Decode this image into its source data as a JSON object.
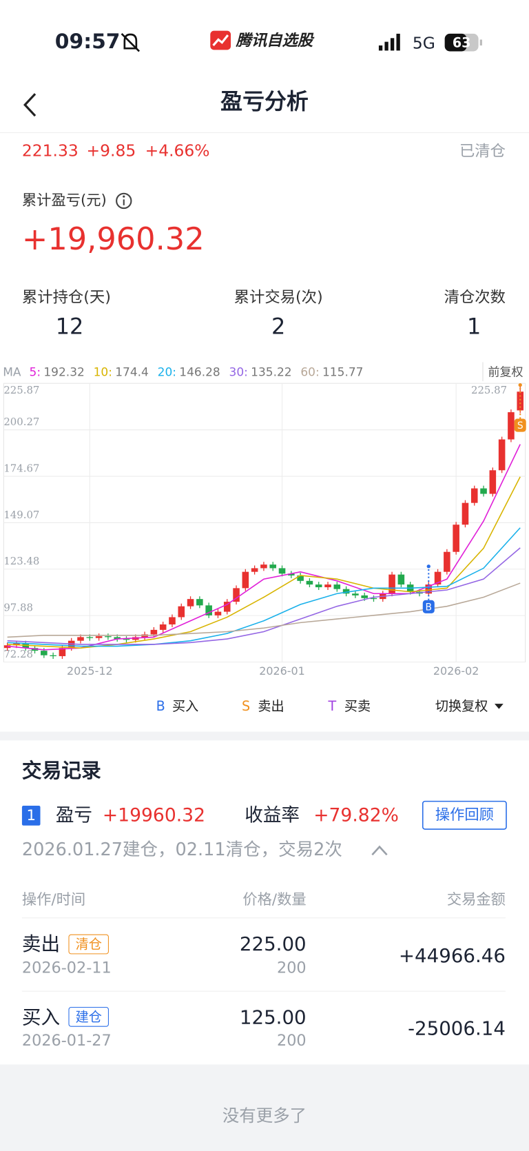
{
  "status_bar": {
    "time": "09:57",
    "app_name": "腾讯自选股",
    "network": "5G",
    "battery": "63"
  },
  "nav": {
    "title": "盈亏分析"
  },
  "quote": {
    "price": "221.33",
    "change": "+9.85",
    "change_pct": "+4.66%",
    "status": "已清仓"
  },
  "summary": {
    "label": "累计盈亏(元)",
    "value": "+19,960.32"
  },
  "stats": [
    {
      "label": "累计持仓(天)",
      "value": "12"
    },
    {
      "label": "累计交易(次)",
      "value": "2"
    },
    {
      "label": "清仓次数",
      "value": "1"
    }
  ],
  "chart_data": {
    "type": "candlestick",
    "indicator": "MA",
    "adjust_label": "前复权",
    "switch_label": "切换复权",
    "categories": [
      null,
      null,
      null,
      null,
      null,
      null,
      null,
      null,
      null,
      "2025-12",
      null,
      null,
      null,
      null,
      null,
      null,
      null,
      null,
      null,
      null,
      null,
      null,
      null,
      null,
      null,
      null,
      null,
      null,
      null,
      null,
      "2026-01",
      null,
      null,
      null,
      null,
      null,
      null,
      null,
      null,
      null,
      null,
      null,
      null,
      null,
      null,
      null,
      null,
      null,
      null,
      "2026-02",
      null,
      null,
      null,
      null,
      null,
      null,
      null
    ],
    "open": [
      80.0,
      81.5,
      82.5,
      80.0,
      78.5,
      76.0,
      75.5,
      80.0,
      84.0,
      86.0,
      85.5,
      86.5,
      86.0,
      85.0,
      84.5,
      86.0,
      87.5,
      90.0,
      93.0,
      97.0,
      103.0,
      107.0,
      103.5,
      98.0,
      100.0,
      105.5,
      113.0,
      122.0,
      124.0,
      126.0,
      124.0,
      121.0,
      120.0,
      117.0,
      115.0,
      113.5,
      115.0,
      112.5,
      110.0,
      109.0,
      107.5,
      107.0,
      110.0,
      120.5,
      115.0,
      111.0,
      110.0,
      115.0,
      122.0,
      133.0,
      148.0,
      160.0,
      168.0,
      165.0,
      178.0,
      195.0,
      211.0
    ],
    "high": [
      83.0,
      84.0,
      84.0,
      81.5,
      80.0,
      77.5,
      81.5,
      85.5,
      87.5,
      87.5,
      88.0,
      88.0,
      87.5,
      86.5,
      87.5,
      89.0,
      91.5,
      94.5,
      98.5,
      104.5,
      108.5,
      108.5,
      105.0,
      101.5,
      107.0,
      114.5,
      123.5,
      125.5,
      127.5,
      127.5,
      125.5,
      122.5,
      121.5,
      118.5,
      116.5,
      116.5,
      116.5,
      114.0,
      111.5,
      110.5,
      109.0,
      111.5,
      122.0,
      122.0,
      116.5,
      112.5,
      116.5,
      123.5,
      134.5,
      149.5,
      161.5,
      169.5,
      169.5,
      179.5,
      196.5,
      211.5,
      225.87
    ],
    "low": [
      78.5,
      80.0,
      78.5,
      77.0,
      74.5,
      74.0,
      74.0,
      78.5,
      82.5,
      84.0,
      84.0,
      84.5,
      83.5,
      83.0,
      83.0,
      84.5,
      86.0,
      88.5,
      91.5,
      95.5,
      101.5,
      102.0,
      96.5,
      96.5,
      98.5,
      104.0,
      111.5,
      120.5,
      122.5,
      122.5,
      119.5,
      118.5,
      115.5,
      113.5,
      112.0,
      112.0,
      111.0,
      108.5,
      107.5,
      106.0,
      105.5,
      105.5,
      108.5,
      113.5,
      109.5,
      108.5,
      108.5,
      113.5,
      120.5,
      131.5,
      146.5,
      158.5,
      163.5,
      163.5,
      176.5,
      193.5,
      209.5
    ],
    "close": [
      81.5,
      82.5,
      80.0,
      78.5,
      76.0,
      75.5,
      80.0,
      84.0,
      86.0,
      85.5,
      86.5,
      86.0,
      85.0,
      84.5,
      86.0,
      87.5,
      90.0,
      93.0,
      97.0,
      103.0,
      107.0,
      103.5,
      98.0,
      100.0,
      105.5,
      113.0,
      122.0,
      124.0,
      126.0,
      124.0,
      121.0,
      120.0,
      117.0,
      115.0,
      113.5,
      115.0,
      112.5,
      110.0,
      109.0,
      107.5,
      107.0,
      110.0,
      120.5,
      115.0,
      111.0,
      110.0,
      115.0,
      122.0,
      133.0,
      148.0,
      160.0,
      168.0,
      165.0,
      178.0,
      195.0,
      210.0,
      221.33
    ],
    "up_color": "#e8312f",
    "down_color": "#22a94d",
    "ylim": [
      72.28,
      225.87
    ],
    "yticks": [
      72.28,
      97.88,
      123.48,
      149.07,
      174.67,
      200.27,
      225.87
    ],
    "grid": true,
    "ma": [
      {
        "name": "5:",
        "color": "#e020d8",
        "x": [
          0,
          4,
          8,
          12,
          16,
          20,
          24,
          28,
          32,
          36,
          40,
          44,
          48,
          52,
          56
        ],
        "values": [
          81,
          79,
          80,
          85,
          86,
          95,
          104,
          118,
          122,
          117,
          110,
          110,
          118,
          150,
          192.32
        ]
      },
      {
        "name": "10:",
        "color": "#d8b400",
        "x": [
          0,
          4,
          8,
          12,
          16,
          20,
          24,
          28,
          32,
          36,
          40,
          44,
          48,
          52,
          56
        ],
        "values": [
          82,
          81,
          80,
          82,
          85,
          89,
          97,
          108,
          120,
          118,
          113,
          111,
          113,
          135,
          174.4
        ]
      },
      {
        "name": "20:",
        "color": "#18b0ea",
        "x": [
          0,
          4,
          8,
          12,
          16,
          20,
          24,
          28,
          32,
          36,
          40,
          44,
          48,
          52,
          56
        ],
        "values": [
          83,
          82,
          81,
          81,
          82,
          84,
          88,
          95,
          104,
          110,
          113,
          113,
          114,
          124,
          146.28
        ]
      },
      {
        "name": "30:",
        "color": "#9466e4",
        "x": [
          0,
          4,
          8,
          12,
          16,
          20,
          24,
          28,
          32,
          36,
          40,
          44,
          48,
          52,
          56
        ],
        "values": [
          84,
          83,
          82,
          82,
          82,
          83,
          85,
          89,
          96,
          103,
          108,
          110,
          112,
          118,
          135.22
        ]
      },
      {
        "name": "60:",
        "color": "#b8a898",
        "x": [
          0,
          4,
          8,
          12,
          16,
          20,
          24,
          28,
          32,
          36,
          40,
          44,
          48,
          52,
          56
        ],
        "values": [
          86,
          87,
          87,
          87,
          87,
          88,
          89,
          91,
          94,
          96,
          98,
          100,
          103,
          108,
          115.77
        ]
      }
    ],
    "markers": [
      {
        "label": "B",
        "x": 46,
        "value": 125,
        "color": "#2a6ee8"
      },
      {
        "label": "S",
        "x": 56,
        "value": 225,
        "color": "#f0901e"
      }
    ],
    "legend": [
      {
        "symbol": "B",
        "label": "买入",
        "color": "#2a6ee8"
      },
      {
        "symbol": "S",
        "label": "卖出",
        "color": "#f0901e"
      },
      {
        "symbol": "T",
        "label": "买卖",
        "color": "#a040e0"
      }
    ]
  },
  "trades": {
    "title": "交易记录",
    "record": {
      "index": "1",
      "pnl_label": "盈亏",
      "pnl": "+19960.32",
      "return_label": "收益率",
      "return": "+79.82%",
      "review_button": "操作回顾",
      "summary": "2026.01.27建仓，02.11清仓，交易2次"
    },
    "columns": [
      "操作/时间",
      "价格/数量",
      "交易金额"
    ],
    "rows": [
      {
        "action": "卖出",
        "tag": "清仓",
        "date": "2026-02-11",
        "price": "225.00",
        "quantity": "200",
        "amount": "+44966.46"
      },
      {
        "action": "买入",
        "tag": "建仓",
        "date": "2026-01-27",
        "price": "125.00",
        "quantity": "200",
        "amount": "-25006.14"
      }
    ],
    "footer": "没有更多了"
  }
}
